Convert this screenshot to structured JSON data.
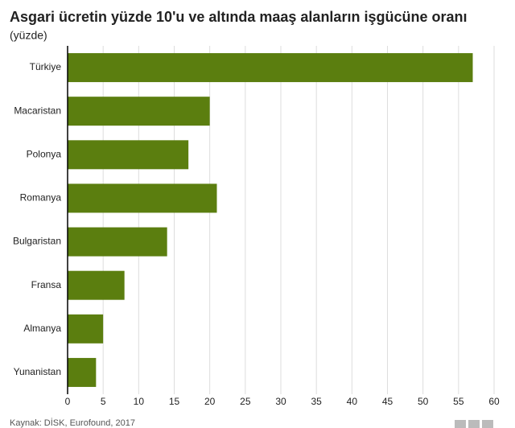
{
  "chart_data": {
    "type": "hbar",
    "title": "Asgari ücretin yüzde 10'u ve altında maaş alanların işgücüne oranı",
    "subtitle": "(yüzde)",
    "categories": [
      "Türkiye",
      "Macaristan",
      "Polonya",
      "Romanya",
      "Bulgaristan",
      "Fransa",
      "Almanya",
      "Yunanistan"
    ],
    "values": [
      57,
      20,
      17,
      21,
      14,
      8,
      5,
      4
    ],
    "color": "#5b7e0f",
    "xlim": [
      0,
      60
    ],
    "xticks": [
      0,
      5,
      10,
      15,
      20,
      25,
      30,
      35,
      40,
      45,
      50,
      55,
      60
    ],
    "grid": true,
    "source": "Kaynak: DİSK, Eurofound, 2017"
  }
}
